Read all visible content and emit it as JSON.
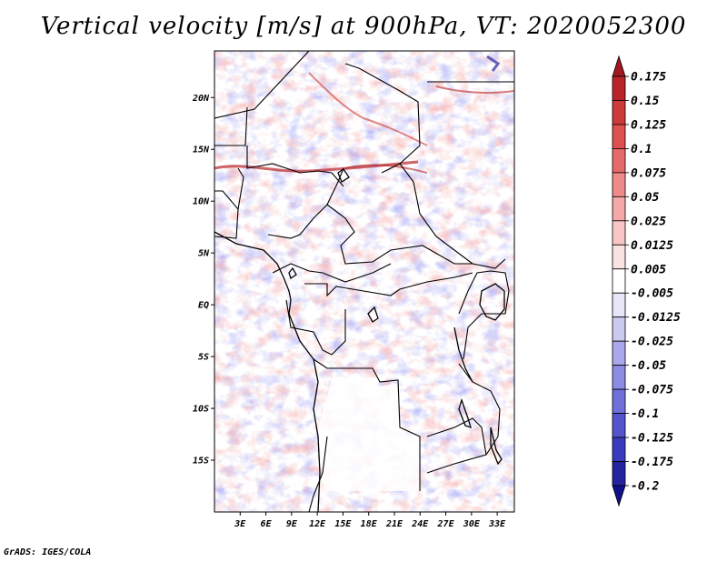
{
  "chart_data": {
    "type": "heatmap",
    "title": "Vertical velocity [m/s] at 900hPa, VT: 2020052300",
    "xlabel": "",
    "ylabel": "",
    "x_ticks": [
      {
        "lon": 3,
        "label": "3E"
      },
      {
        "lon": 6,
        "label": "6E"
      },
      {
        "lon": 9,
        "label": "9E"
      },
      {
        "lon": 12,
        "label": "12E"
      },
      {
        "lon": 15,
        "label": "15E"
      },
      {
        "lon": 18,
        "label": "18E"
      },
      {
        "lon": 21,
        "label": "21E"
      },
      {
        "lon": 24,
        "label": "24E"
      },
      {
        "lon": 27,
        "label": "27E"
      },
      {
        "lon": 30,
        "label": "30E"
      },
      {
        "lon": 33,
        "label": "33E"
      }
    ],
    "y_ticks": [
      {
        "lat": 20,
        "label": "20N"
      },
      {
        "lat": 15,
        "label": "15N"
      },
      {
        "lat": 10,
        "label": "10N"
      },
      {
        "lat": 5,
        "label": "5N"
      },
      {
        "lat": 0,
        "label": "EQ"
      },
      {
        "lat": -5,
        "label": "5S"
      },
      {
        "lat": -10,
        "label": "10S"
      },
      {
        "lat": -15,
        "label": "15S"
      }
    ],
    "xlim": [
      0,
      35
    ],
    "ylim": [
      -20,
      24.5
    ],
    "colorbar": {
      "levels": [
        "0.175",
        "0.15",
        "0.125",
        "0.1",
        "0.075",
        "0.05",
        "0.025",
        "0.0125",
        "0.005",
        "-0.005",
        "-0.0125",
        "-0.025",
        "-0.05",
        "-0.075",
        "-0.1",
        "-0.125",
        "-0.175",
        "-0.2"
      ],
      "colors": [
        "#a01820",
        "#b82428",
        "#cc3a3a",
        "#dc5050",
        "#e56a6a",
        "#ee8a8a",
        "#f4a8a8",
        "#f8c6c6",
        "#fbe2e2",
        "#ffffff",
        "#e6e6f8",
        "#cacaf0",
        "#a8a8ea",
        "#8c8ce4",
        "#7070da",
        "#5454cc",
        "#3a3abc",
        "#24249e",
        "#10108a"
      ]
    }
  },
  "credit": "GrADS: IGES/COLA"
}
